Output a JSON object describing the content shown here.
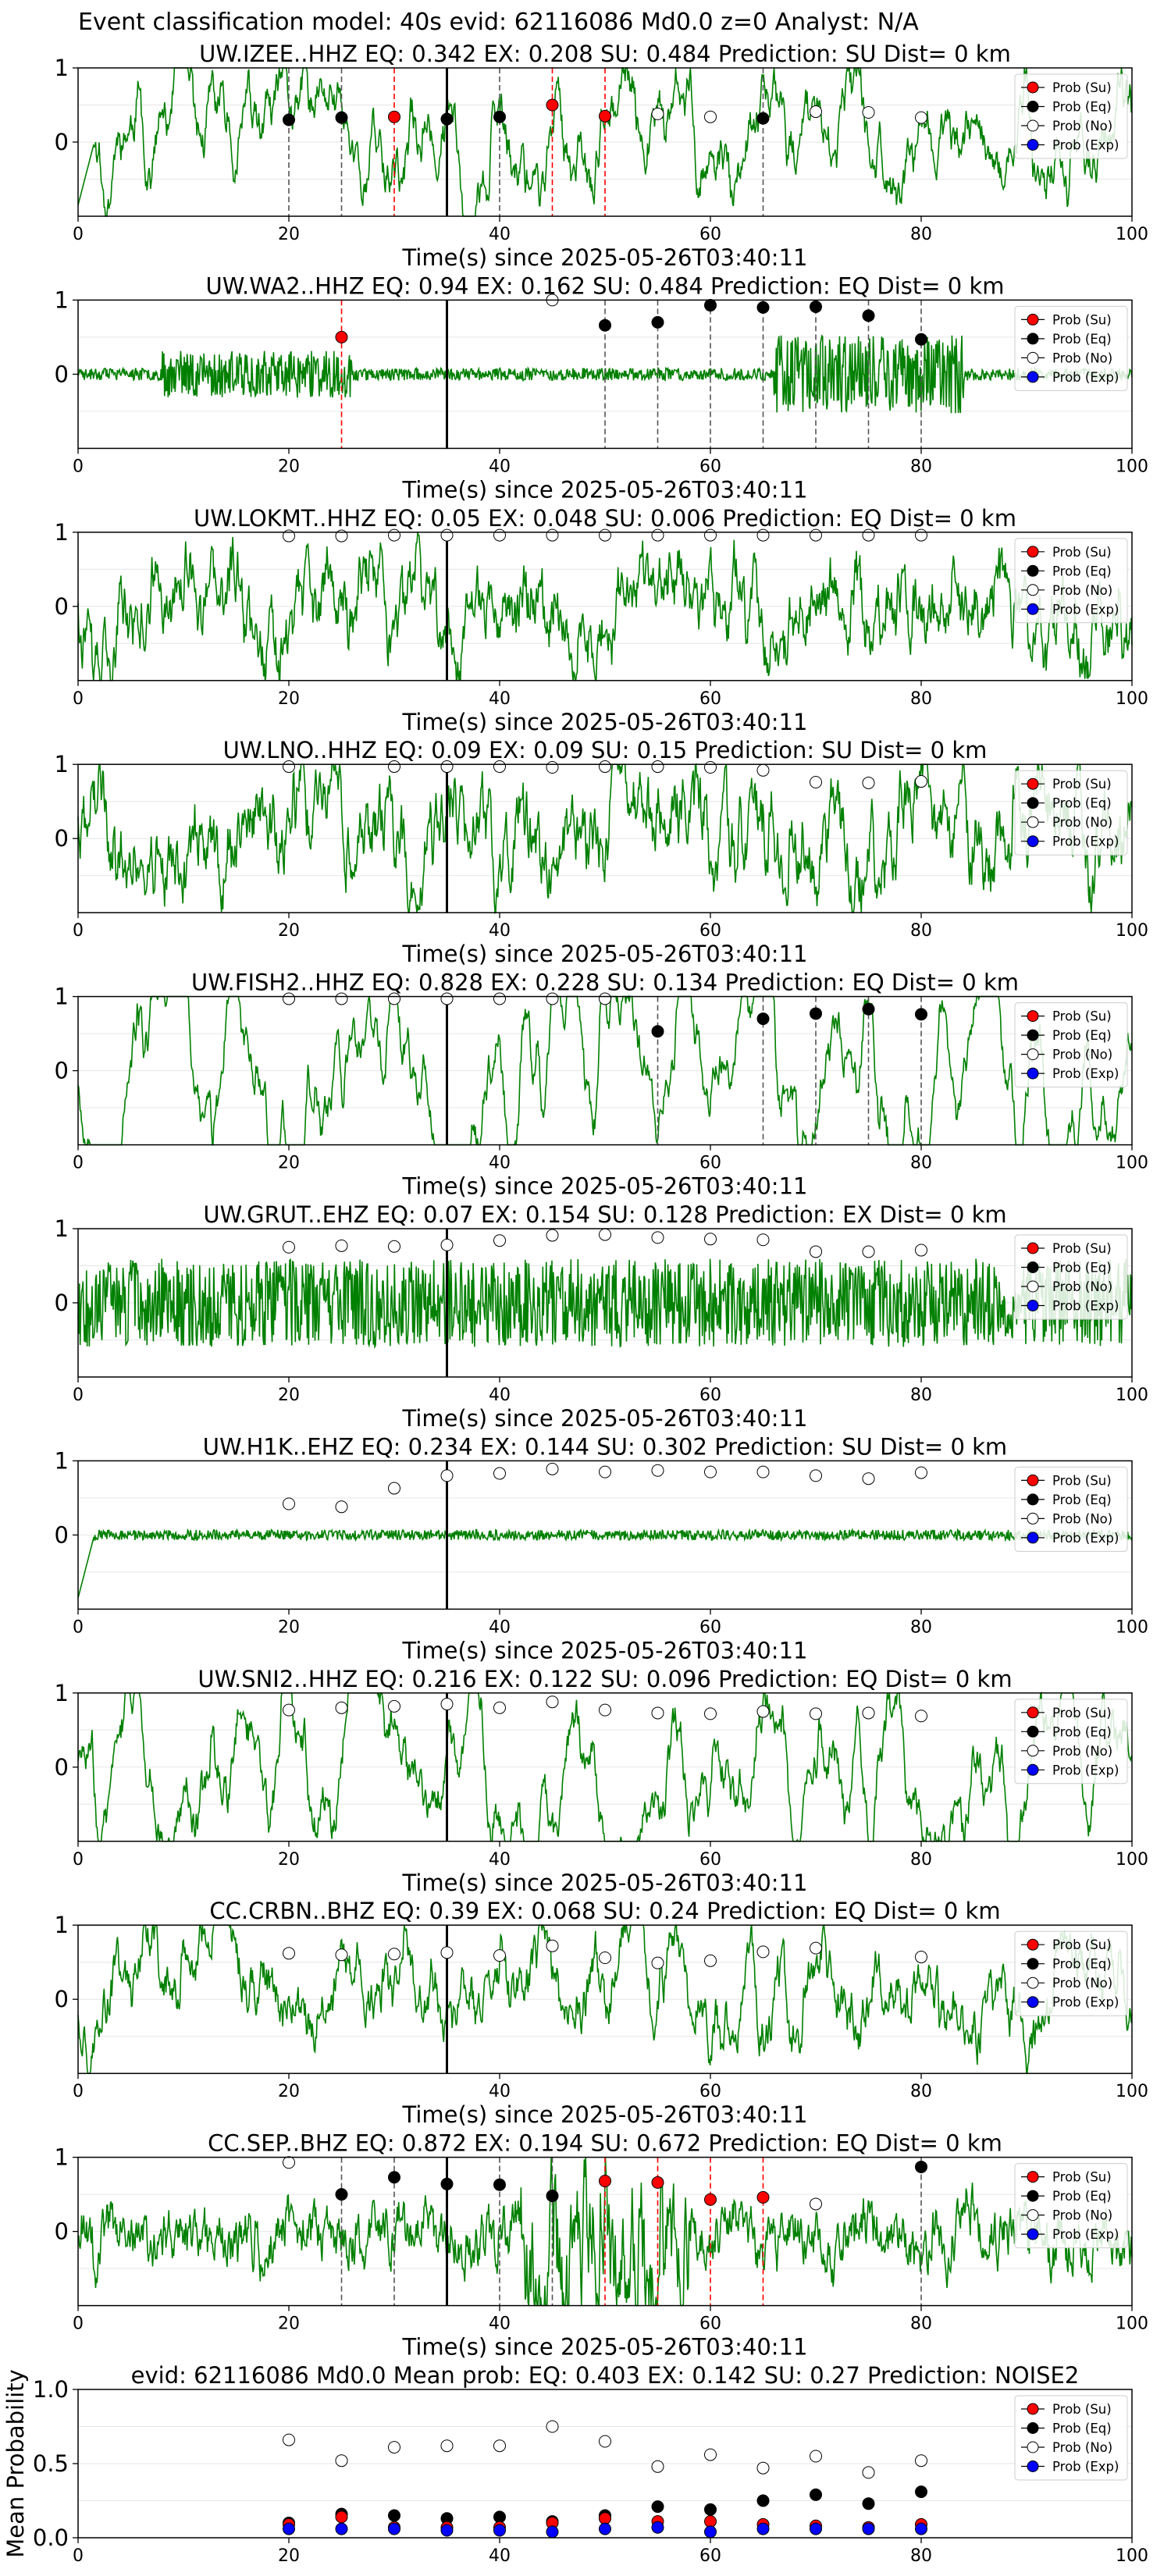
{
  "suptitle": "Event classification model: 40s evid: 62116086 Md0.0 z=0 Analyst: N/A",
  "colors": {
    "trace": "#008000",
    "su": "#ff0000",
    "eq": "#000000",
    "no": "#ffffff",
    "exp": "#0000ff",
    "grid": "#e6e6e6"
  },
  "legend_labels": [
    "Prob (Su)",
    "Prob (Eq)",
    "Prob (No)",
    "Prob (Exp)"
  ],
  "chart_data": [
    {
      "type": "scatter",
      "title": "UW.IZEE..HHZ   EQ: 0.342  EX: 0.208  SU: 0.484   Prediction: SU    Dist= 0 km",
      "xlabel": "Time(s) since 2025-05-26T03:40:11",
      "ylabel": "",
      "xlim": [
        0,
        100
      ],
      "ylim": [
        -1,
        1
      ],
      "xticks": [
        "0",
        "20",
        "40",
        "60",
        "80",
        "100"
      ],
      "yticks": [
        "0",
        "1"
      ],
      "trace": {
        "amp": 0.55,
        "smooth": 6,
        "spikes": [],
        "start_dip": true,
        "burst": null,
        "seed": 11
      },
      "windows_x": [
        20,
        25,
        30,
        35,
        40,
        45,
        50,
        55,
        60,
        65,
        70,
        75,
        80
      ],
      "markers": [
        "eq",
        "eq",
        "su",
        "eq",
        "eq",
        "su",
        "su",
        "no",
        "no",
        "eq",
        "no",
        "no",
        "no"
      ],
      "values": [
        0.3,
        0.33,
        0.34,
        0.31,
        0.34,
        0.5,
        0.35,
        0.38,
        0.34,
        0.32,
        0.41,
        0.4,
        0.33
      ],
      "vlines": [
        {
          "x": 20,
          "c": "black"
        },
        {
          "x": 25,
          "c": "black"
        },
        {
          "x": 30,
          "c": "red"
        },
        {
          "x": 40,
          "c": "black"
        },
        {
          "x": 45,
          "c": "red"
        },
        {
          "x": 50,
          "c": "red"
        },
        {
          "x": 65,
          "c": "black"
        }
      ]
    },
    {
      "type": "scatter",
      "title": "UW.WA2..HHZ   EQ: 0.94  EX: 0.162  SU: 0.484   Prediction: EQ    Dist= 0 km",
      "xlabel": "Time(s) since 2025-05-26T03:40:11",
      "ylabel": "",
      "xlim": [
        0,
        100
      ],
      "ylim": [
        -1,
        1
      ],
      "xticks": [
        "0",
        "20",
        "40",
        "60",
        "80",
        "100"
      ],
      "yticks": [
        "0",
        "1"
      ],
      "trace": {
        "amp": 0.12,
        "smooth": 1,
        "spikes": [],
        "start_dip": false,
        "burst": [
          [
            8,
            26,
            0.45
          ],
          [
            66,
            84,
            0.75
          ]
        ],
        "seed": 23
      },
      "windows_x": [
        25,
        45,
        50,
        55,
        60,
        65,
        70,
        75,
        80
      ],
      "markers": [
        "su",
        "no",
        "eq",
        "eq",
        "eq",
        "eq",
        "eq",
        "eq",
        "eq"
      ],
      "values": [
        0.5,
        1.0,
        0.66,
        0.7,
        0.93,
        0.9,
        0.91,
        0.79,
        0.47
      ],
      "vlines": [
        {
          "x": 25,
          "c": "red"
        },
        {
          "x": 50,
          "c": "black"
        },
        {
          "x": 55,
          "c": "black"
        },
        {
          "x": 60,
          "c": "black"
        },
        {
          "x": 65,
          "c": "black"
        },
        {
          "x": 70,
          "c": "black"
        },
        {
          "x": 75,
          "c": "black"
        },
        {
          "x": 80,
          "c": "black"
        }
      ]
    },
    {
      "type": "scatter",
      "title": "UW.LOKMT..HHZ   EQ: 0.05  EX: 0.048  SU: 0.006   Prediction: EQ    Dist= 0 km",
      "xlabel": "Time(s) since 2025-05-26T03:40:11",
      "ylabel": "",
      "xlim": [
        0,
        100
      ],
      "ylim": [
        -1,
        1
      ],
      "xticks": [
        "0",
        "20",
        "40",
        "60",
        "80",
        "100"
      ],
      "yticks": [
        "0",
        "1"
      ],
      "trace": {
        "amp": 0.55,
        "smooth": 4,
        "spikes": [],
        "start_dip": false,
        "burst": null,
        "seed": 37
      },
      "windows_x": [
        20,
        25,
        30,
        35,
        40,
        45,
        50,
        55,
        60,
        65,
        70,
        75,
        80
      ],
      "markers": [
        "no",
        "no",
        "no",
        "no",
        "no",
        "no",
        "no",
        "no",
        "no",
        "no",
        "no",
        "no",
        "no"
      ],
      "values": [
        0.95,
        0.95,
        0.96,
        0.96,
        0.96,
        0.96,
        0.96,
        0.96,
        0.96,
        0.96,
        0.96,
        0.96,
        0.96
      ],
      "vlines": []
    },
    {
      "type": "scatter",
      "title": "UW.LNO..HHZ   EQ: 0.09  EX: 0.09  SU: 0.15   Prediction: SU    Dist= 0 km",
      "xlabel": "Time(s) since 2025-05-26T03:40:11",
      "ylabel": "",
      "xlim": [
        0,
        100
      ],
      "ylim": [
        -1,
        1
      ],
      "xticks": [
        "0",
        "20",
        "40",
        "60",
        "80",
        "100"
      ],
      "yticks": [
        "0",
        "1"
      ],
      "trace": {
        "amp": 0.6,
        "smooth": 4,
        "spikes": [],
        "start_dip": false,
        "burst": null,
        "seed": 41
      },
      "windows_x": [
        20,
        30,
        35,
        40,
        45,
        50,
        55,
        60,
        65,
        70,
        75,
        80
      ],
      "markers": [
        "no",
        "no",
        "no",
        "no",
        "no",
        "no",
        "no",
        "no",
        "no",
        "no",
        "no",
        "no"
      ],
      "values": [
        0.97,
        0.97,
        0.97,
        0.97,
        0.96,
        0.97,
        0.97,
        0.96,
        0.92,
        0.76,
        0.75,
        0.77
      ],
      "vlines": []
    },
    {
      "type": "scatter",
      "title": "UW.FISH2..HHZ   EQ: 0.828  EX: 0.228  SU: 0.134   Prediction: EQ    Dist= 0 km",
      "xlabel": "Time(s) since 2025-05-26T03:40:11",
      "ylabel": "",
      "xlim": [
        0,
        100
      ],
      "ylim": [
        -1,
        1
      ],
      "xticks": [
        "0",
        "20",
        "40",
        "60",
        "80",
        "100"
      ],
      "yticks": [
        "0",
        "1"
      ],
      "trace": {
        "amp": 0.75,
        "smooth": 9,
        "spikes": [],
        "start_dip": false,
        "burst": null,
        "seed": 53
      },
      "windows_x": [
        20,
        25,
        30,
        35,
        40,
        45,
        50,
        55,
        65,
        70,
        75,
        80
      ],
      "markers": [
        "no",
        "no",
        "no",
        "no",
        "no",
        "no",
        "no",
        "eq",
        "eq",
        "eq",
        "eq",
        "eq"
      ],
      "values": [
        0.97,
        0.97,
        0.97,
        0.97,
        0.97,
        0.97,
        0.97,
        0.53,
        0.7,
        0.77,
        0.83,
        0.76
      ],
      "vlines": [
        {
          "x": 55,
          "c": "black"
        },
        {
          "x": 65,
          "c": "black"
        },
        {
          "x": 70,
          "c": "black"
        },
        {
          "x": 75,
          "c": "black"
        },
        {
          "x": 80,
          "c": "black"
        }
      ]
    },
    {
      "type": "scatter",
      "title": "UW.GRUT..EHZ   EQ: 0.07  EX: 0.154  SU: 0.128   Prediction: EX    Dist= 0 km",
      "xlabel": "Time(s) since 2025-05-26T03:40:11",
      "ylabel": "",
      "xlim": [
        0,
        100
      ],
      "ylim": [
        -1,
        1
      ],
      "xticks": [
        "0",
        "20",
        "40",
        "60",
        "80",
        "100"
      ],
      "yticks": [
        "0",
        "1"
      ],
      "trace": {
        "amp": 0.85,
        "smooth": 1,
        "spikes": [],
        "start_dip": false,
        "burst": null,
        "seed": 67
      },
      "windows_x": [
        20,
        25,
        30,
        35,
        40,
        45,
        50,
        55,
        60,
        65,
        70,
        75,
        80
      ],
      "markers": [
        "no",
        "no",
        "no",
        "no",
        "no",
        "no",
        "no",
        "no",
        "no",
        "no",
        "no",
        "no",
        "no"
      ],
      "values": [
        0.75,
        0.77,
        0.76,
        0.78,
        0.84,
        0.91,
        0.92,
        0.88,
        0.86,
        0.85,
        0.69,
        0.69,
        0.71
      ],
      "vlines": []
    },
    {
      "type": "scatter",
      "title": "UW.H1K..EHZ   EQ: 0.234  EX: 0.144  SU: 0.302   Prediction: SU    Dist= 0 km",
      "xlabel": "Time(s) since 2025-05-26T03:40:11",
      "ylabel": "",
      "xlim": [
        0,
        100
      ],
      "ylim": [
        -1,
        1
      ],
      "xticks": [
        "0",
        "20",
        "40",
        "60",
        "80",
        "100"
      ],
      "yticks": [
        "0",
        "1"
      ],
      "trace": {
        "amp": 0.1,
        "smooth": 1,
        "spikes": [],
        "start_dip": true,
        "burst": null,
        "seed": 79
      },
      "windows_x": [
        20,
        25,
        30,
        35,
        40,
        45,
        50,
        55,
        60,
        65,
        70,
        75,
        80
      ],
      "markers": [
        "no",
        "no",
        "no",
        "no",
        "no",
        "no",
        "no",
        "no",
        "no",
        "no",
        "no",
        "no",
        "no"
      ],
      "values": [
        0.42,
        0.38,
        0.63,
        0.8,
        0.83,
        0.89,
        0.85,
        0.87,
        0.85,
        0.85,
        0.8,
        0.76,
        0.84
      ],
      "vlines": []
    },
    {
      "type": "scatter",
      "title": "UW.SNI2..HHZ   EQ: 0.216  EX: 0.122  SU: 0.096   Prediction: EQ    Dist= 0 km",
      "xlabel": "Time(s) since 2025-05-26T03:40:11",
      "ylabel": "",
      "xlim": [
        0,
        100
      ],
      "ylim": [
        -1,
        1
      ],
      "xticks": [
        "0",
        "20",
        "40",
        "60",
        "80",
        "100"
      ],
      "yticks": [
        "0",
        "1"
      ],
      "trace": {
        "amp": 0.6,
        "smooth": 7,
        "spikes": [],
        "start_dip": false,
        "burst": null,
        "seed": 83
      },
      "windows_x": [
        20,
        25,
        30,
        35,
        40,
        45,
        50,
        55,
        60,
        65,
        70,
        75,
        80
      ],
      "markers": [
        "no",
        "no",
        "no",
        "no",
        "no",
        "no",
        "no",
        "no",
        "no",
        "no",
        "no",
        "no",
        "no"
      ],
      "values": [
        0.77,
        0.8,
        0.82,
        0.85,
        0.8,
        0.88,
        0.77,
        0.73,
        0.72,
        0.75,
        0.72,
        0.73,
        0.69
      ],
      "vlines": []
    },
    {
      "type": "scatter",
      "title": "CC.CRBN..BHZ   EQ: 0.39  EX: 0.068  SU: 0.24   Prediction: EQ    Dist= 0 km",
      "xlabel": "Time(s) since 2025-05-26T03:40:11",
      "ylabel": "",
      "xlim": [
        0,
        100
      ],
      "ylim": [
        -1,
        1
      ],
      "xticks": [
        "0",
        "20",
        "40",
        "60",
        "80",
        "100"
      ],
      "yticks": [
        "0",
        "1"
      ],
      "trace": {
        "amp": 0.5,
        "smooth": 5,
        "spikes": [],
        "start_dip": false,
        "burst": null,
        "seed": 97
      },
      "windows_x": [
        20,
        25,
        30,
        35,
        40,
        45,
        50,
        55,
        60,
        65,
        70,
        80
      ],
      "markers": [
        "no",
        "no",
        "no",
        "no",
        "no",
        "no",
        "no",
        "no",
        "no",
        "no",
        "no",
        "no"
      ],
      "values": [
        0.62,
        0.6,
        0.61,
        0.63,
        0.59,
        0.72,
        0.56,
        0.49,
        0.52,
        0.64,
        0.69,
        0.57
      ],
      "vlines": []
    },
    {
      "type": "scatter",
      "title": "CC.SEP..BHZ   EQ: 0.872  EX: 0.194  SU: 0.672   Prediction: EQ    Dist= 0 km",
      "xlabel": "Time(s) since 2025-05-26T03:40:11",
      "ylabel": "",
      "xlim": [
        0,
        100
      ],
      "ylim": [
        -1,
        1
      ],
      "xticks": [
        "0",
        "20",
        "40",
        "60",
        "80",
        "100"
      ],
      "yticks": [
        "0",
        "1"
      ],
      "trace": {
        "amp": 0.35,
        "smooth": 3,
        "spikes": [],
        "start_dip": false,
        "burst": [
          [
            42,
            58,
            0.9
          ]
        ],
        "seed": 101
      },
      "windows_x": [
        20,
        25,
        30,
        35,
        40,
        45,
        50,
        55,
        60,
        65,
        70,
        80
      ],
      "markers": [
        "no",
        "eq",
        "eq",
        "eq",
        "eq",
        "eq",
        "su",
        "su",
        "su",
        "su",
        "no",
        "eq"
      ],
      "values": [
        0.93,
        0.5,
        0.73,
        0.64,
        0.63,
        0.48,
        0.68,
        0.66,
        0.43,
        0.46,
        0.37,
        0.87
      ],
      "vlines": [
        {
          "x": 25,
          "c": "black"
        },
        {
          "x": 30,
          "c": "black"
        },
        {
          "x": 40,
          "c": "black"
        },
        {
          "x": 45,
          "c": "black"
        },
        {
          "x": 50,
          "c": "red"
        },
        {
          "x": 55,
          "c": "red"
        },
        {
          "x": 60,
          "c": "red"
        },
        {
          "x": 65,
          "c": "red"
        },
        {
          "x": 80,
          "c": "black"
        }
      ]
    },
    {
      "type": "scatter",
      "title": "evid: 62116086  Md0.0   Mean prob:   EQ: 0.403  EX: 0.142  SU: 0.27   Prediction: NOISE2",
      "xlabel": "",
      "ylabel": "Mean Probability",
      "xlim": [
        0,
        100
      ],
      "ylim": [
        0,
        1
      ],
      "xticks": [
        "0",
        "20",
        "40",
        "60",
        "80",
        "100"
      ],
      "yticks": [
        "0.0",
        "0.5",
        "1.0"
      ],
      "x": [
        20,
        25,
        30,
        35,
        40,
        45,
        50,
        55,
        60,
        65,
        70,
        75,
        80
      ],
      "series": [
        {
          "name": "Prob (No)",
          "marker": "no",
          "values": [
            0.66,
            0.52,
            0.61,
            0.62,
            0.62,
            0.75,
            0.65,
            0.48,
            0.56,
            0.47,
            0.55,
            0.44,
            0.52
          ]
        },
        {
          "name": "Prob (Eq)",
          "marker": "eq",
          "values": [
            0.1,
            0.16,
            0.15,
            0.13,
            0.14,
            0.11,
            0.15,
            0.21,
            0.19,
            0.25,
            0.29,
            0.23,
            0.31
          ]
        },
        {
          "name": "Prob (Su)",
          "marker": "su",
          "values": [
            0.09,
            0.14,
            0.07,
            0.07,
            0.07,
            0.1,
            0.13,
            0.11,
            0.11,
            0.09,
            0.08,
            0.07,
            0.09
          ]
        },
        {
          "name": "Prob (Exp)",
          "marker": "exp",
          "values": [
            0.06,
            0.06,
            0.06,
            0.05,
            0.05,
            0.04,
            0.06,
            0.07,
            0.04,
            0.06,
            0.06,
            0.06,
            0.06
          ]
        }
      ]
    }
  ]
}
